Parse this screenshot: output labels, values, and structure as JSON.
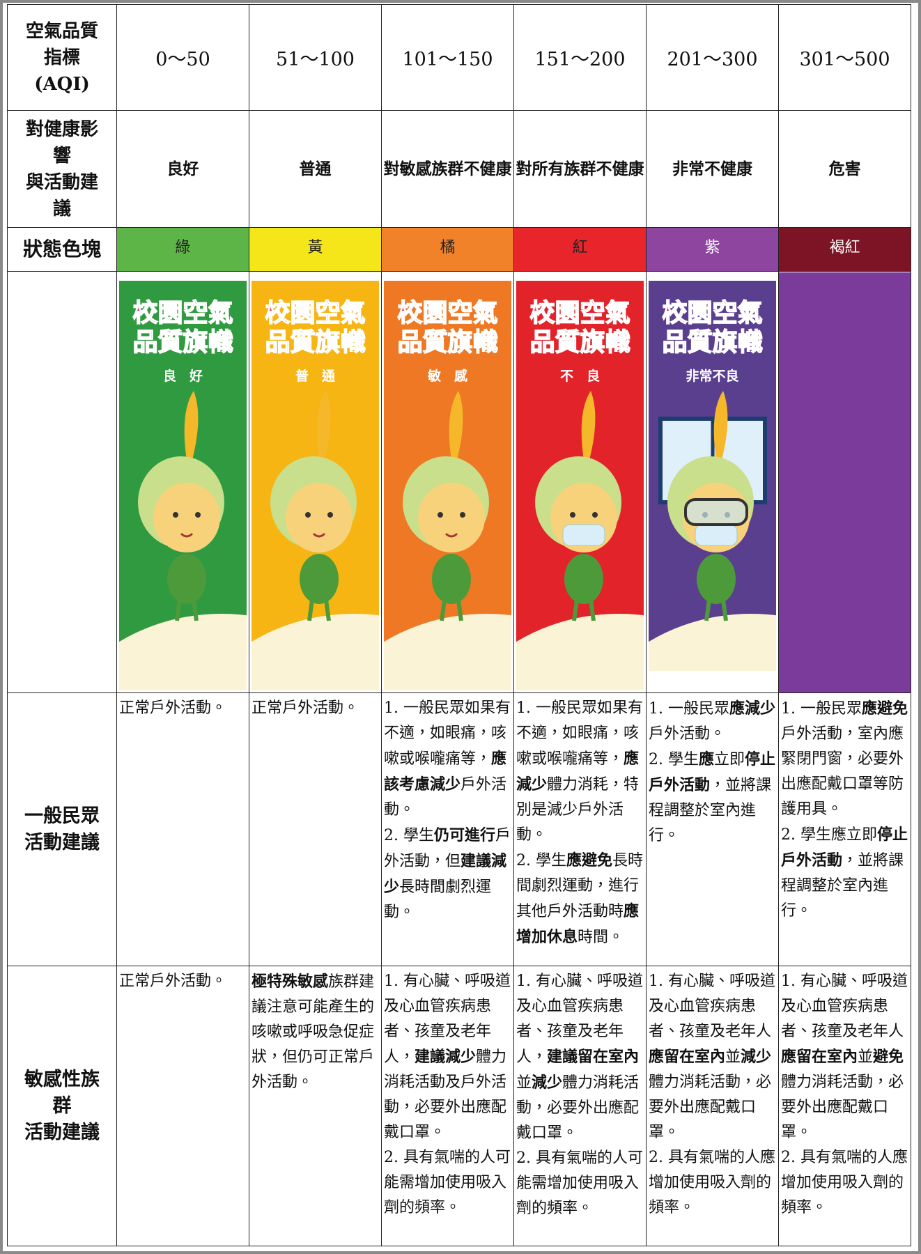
{
  "header": {
    "label": [
      "空氣品質",
      "指標",
      "(AQI)"
    ],
    "ranges": [
      "0～50",
      "51～100",
      "101～150",
      "151～200",
      "201～300",
      "301～500"
    ]
  },
  "health": {
    "label": [
      "對健康影",
      "響",
      "與活動建",
      "議"
    ],
    "values": [
      "良好",
      "普通",
      "對敏感族群不健康",
      "對所有族群不健康",
      "非常不健康",
      "危害"
    ]
  },
  "color_row": {
    "label": "狀態色塊",
    "blocks": [
      {
        "name": "綠",
        "color": "#5db547",
        "text_color": "#222222"
      },
      {
        "name": "黃",
        "color": "#f4e619",
        "text_color": "#222222"
      },
      {
        "name": "橘",
        "color": "#f2822a",
        "text_color": "#222222"
      },
      {
        "name": "紅",
        "color": "#e8252b",
        "text_color": "#222222"
      },
      {
        "name": "紫",
        "color": "#8d45a0",
        "text_color": "#ffffff"
      },
      {
        "name": "褐紅",
        "color": "#7c1426",
        "text_color": "#ffffff"
      }
    ]
  },
  "flags": [
    {
      "title": [
        "校園空氣",
        "品質旗幟"
      ],
      "label": "良　好",
      "color": "#2f9a3f"
    },
    {
      "title": [
        "校園空氣",
        "品質旗幟"
      ],
      "label": "普　通",
      "color": "#f6b513"
    },
    {
      "title": [
        "校園空氣",
        "品質旗幟"
      ],
      "label": "敏　感",
      "color": "#ee7823"
    },
    {
      "title": [
        "校園空氣",
        "品質旗幟"
      ],
      "label": "不　良",
      "color": "#e2232a"
    },
    {
      "title": [
        "校園空氣",
        "品質旗幟"
      ],
      "label": "非常不良",
      "color": "#5b3f8f"
    },
    {
      "color": "#7a3b9b"
    }
  ],
  "general": {
    "label": [
      "一般民眾",
      "活動建議"
    ],
    "cells": [
      [
        [
          "正常戶外活動。"
        ]
      ],
      [
        [
          "正常戶外活動。"
        ]
      ],
      [
        [
          "1. 一般民眾如果有不適，如眼痛，咳嗽或喉嚨痛等，",
          {
            "text": "應該考慮減少",
            "bold": true
          },
          "戶外活動。"
        ],
        [
          "2. 學生",
          {
            "text": "仍可進行",
            "bold": true
          },
          "戶外活動，但",
          {
            "text": "建議減少",
            "bold": true
          },
          "長時間劇烈運動。"
        ]
      ],
      [
        [
          "1. 一般民眾如果有不適，如眼痛，咳嗽或喉嚨痛等，",
          {
            "text": "應減少",
            "bold": true
          },
          "體力消耗，特別是減少戶外活動。"
        ],
        [
          "2. 學生",
          {
            "text": "應避免",
            "bold": true
          },
          "長時間劇烈運動，進行其他戶外活動時",
          {
            "text": "應增加休息",
            "bold": true
          },
          "時間。"
        ]
      ],
      [
        [
          "1. 一般民眾",
          {
            "text": "應減少",
            "bold": true
          },
          "戶外活動。"
        ],
        [
          "2. 學生",
          {
            "text": "應",
            "bold": true
          },
          "立即",
          {
            "text": "停止戶外活動",
            "bold": true
          },
          "，並將課程調整於室內進行。"
        ]
      ],
      [
        [
          "1. 一般民眾",
          {
            "text": "應避免",
            "bold": true
          },
          "戶外活動，室內應緊閉門窗，必要外出應配戴口罩等防護用具。"
        ],
        [
          "2. 學生應立即",
          {
            "text": "停止戶外活動",
            "bold": true
          },
          "，並將課程調整於室內進行。"
        ]
      ]
    ]
  },
  "sensitive": {
    "label": [
      "敏感性族",
      "群",
      "活動建議"
    ],
    "cells": [
      [
        [
          "正常戶外活動。"
        ]
      ],
      [
        [
          {
            "text": "極特殊敏感",
            "bold": true
          },
          "族群建議注意可能產生的咳嗽或呼吸急促症狀，但仍可正常戶外活動。"
        ]
      ],
      [
        [
          "1. 有心臟、呼吸道及心血管疾病患者、孩童及老年人，",
          {
            "text": "建議減少",
            "bold": true
          },
          "體力消耗活動及戶外活動，必要外出應配戴口罩。"
        ],
        [
          "2. 具有氣喘的人可能需增加使用吸入劑的頻率。"
        ]
      ],
      [
        [
          "1. 有心臟、呼吸道及心血管疾病患者、孩童及老年人，",
          {
            "text": "建議留在室內",
            "bold": true
          },
          "並",
          {
            "text": "減少",
            "bold": true
          },
          "體力消耗活動，必要外出應配戴口罩。"
        ],
        [
          "2. 具有氣喘的人可能需增加使用吸入劑的頻率。"
        ]
      ],
      [
        [
          "1. 有心臟、呼吸道及心血管疾病患者、孩童及老年人",
          {
            "text": "應留在室內",
            "bold": true
          },
          "並",
          {
            "text": "減少",
            "bold": true
          },
          "體力消耗活動，必要外出應配戴口罩。"
        ],
        [
          "2. 具有氣喘的人應增加使用吸入劑的頻率。"
        ]
      ],
      [
        [
          "1. 有心臟、呼吸道及心血管疾病患者、孩童及老年人",
          {
            "text": "應留在室內",
            "bold": true
          },
          "並",
          {
            "text": "避免",
            "bold": true
          },
          "體力消耗活動，必要外出應配戴口罩。"
        ],
        [
          "2. 具有氣喘的人應增加使用吸入劑的頻率。"
        ]
      ]
    ]
  }
}
